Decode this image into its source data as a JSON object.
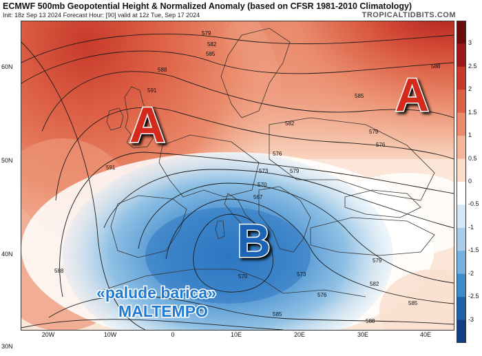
{
  "header": {
    "title": "ECMWF 500mb Geopotential Height & Normalized Anomaly (based on CFSR 1981-2010 Climatology)",
    "subtitle": "Init: 18z Sep 13 2024   Forecast Hour: [90]   valid at 12z Tue, Sep 17 2024",
    "brand": "TROPICALTIDBITS.COM"
  },
  "axes": {
    "lat_labels": [
      "60N",
      "50N",
      "40N",
      "30N"
    ],
    "lon_labels": [
      "20W",
      "10W",
      "0",
      "10E",
      "20E",
      "30E",
      "40E"
    ]
  },
  "colorbar": {
    "labels": [
      "3",
      "2.5",
      "2",
      "1.5",
      "1",
      "0.5",
      "0",
      "-0.5",
      "-1",
      "-1.5",
      "-2",
      "-2.5",
      "-3"
    ],
    "colors": [
      "#6b0d0d",
      "#9e1a1a",
      "#c73a2a",
      "#dd6146",
      "#ea8b6b",
      "#f4b59a",
      "#fadcc8",
      "#ffffff",
      "#d6e8f5",
      "#a9cde9",
      "#76b0dc",
      "#3f8bc9",
      "#1f62a8",
      "#123f7f"
    ]
  },
  "pressure_labels": {
    "high_west": "A",
    "high_east": "A",
    "low_center": "B"
  },
  "annotations": {
    "line1": "«palude barica»",
    "line2": "MALTEMPO"
  },
  "contour_labels": [
    "579",
    "582",
    "585",
    "588",
    "591",
    "585",
    "582",
    "579",
    "576",
    "573",
    "570",
    "567",
    "573",
    "570",
    "576",
    "579",
    "582",
    "585",
    "588",
    "576",
    "579",
    "582",
    "585",
    "588",
    "591",
    "588"
  ]
}
